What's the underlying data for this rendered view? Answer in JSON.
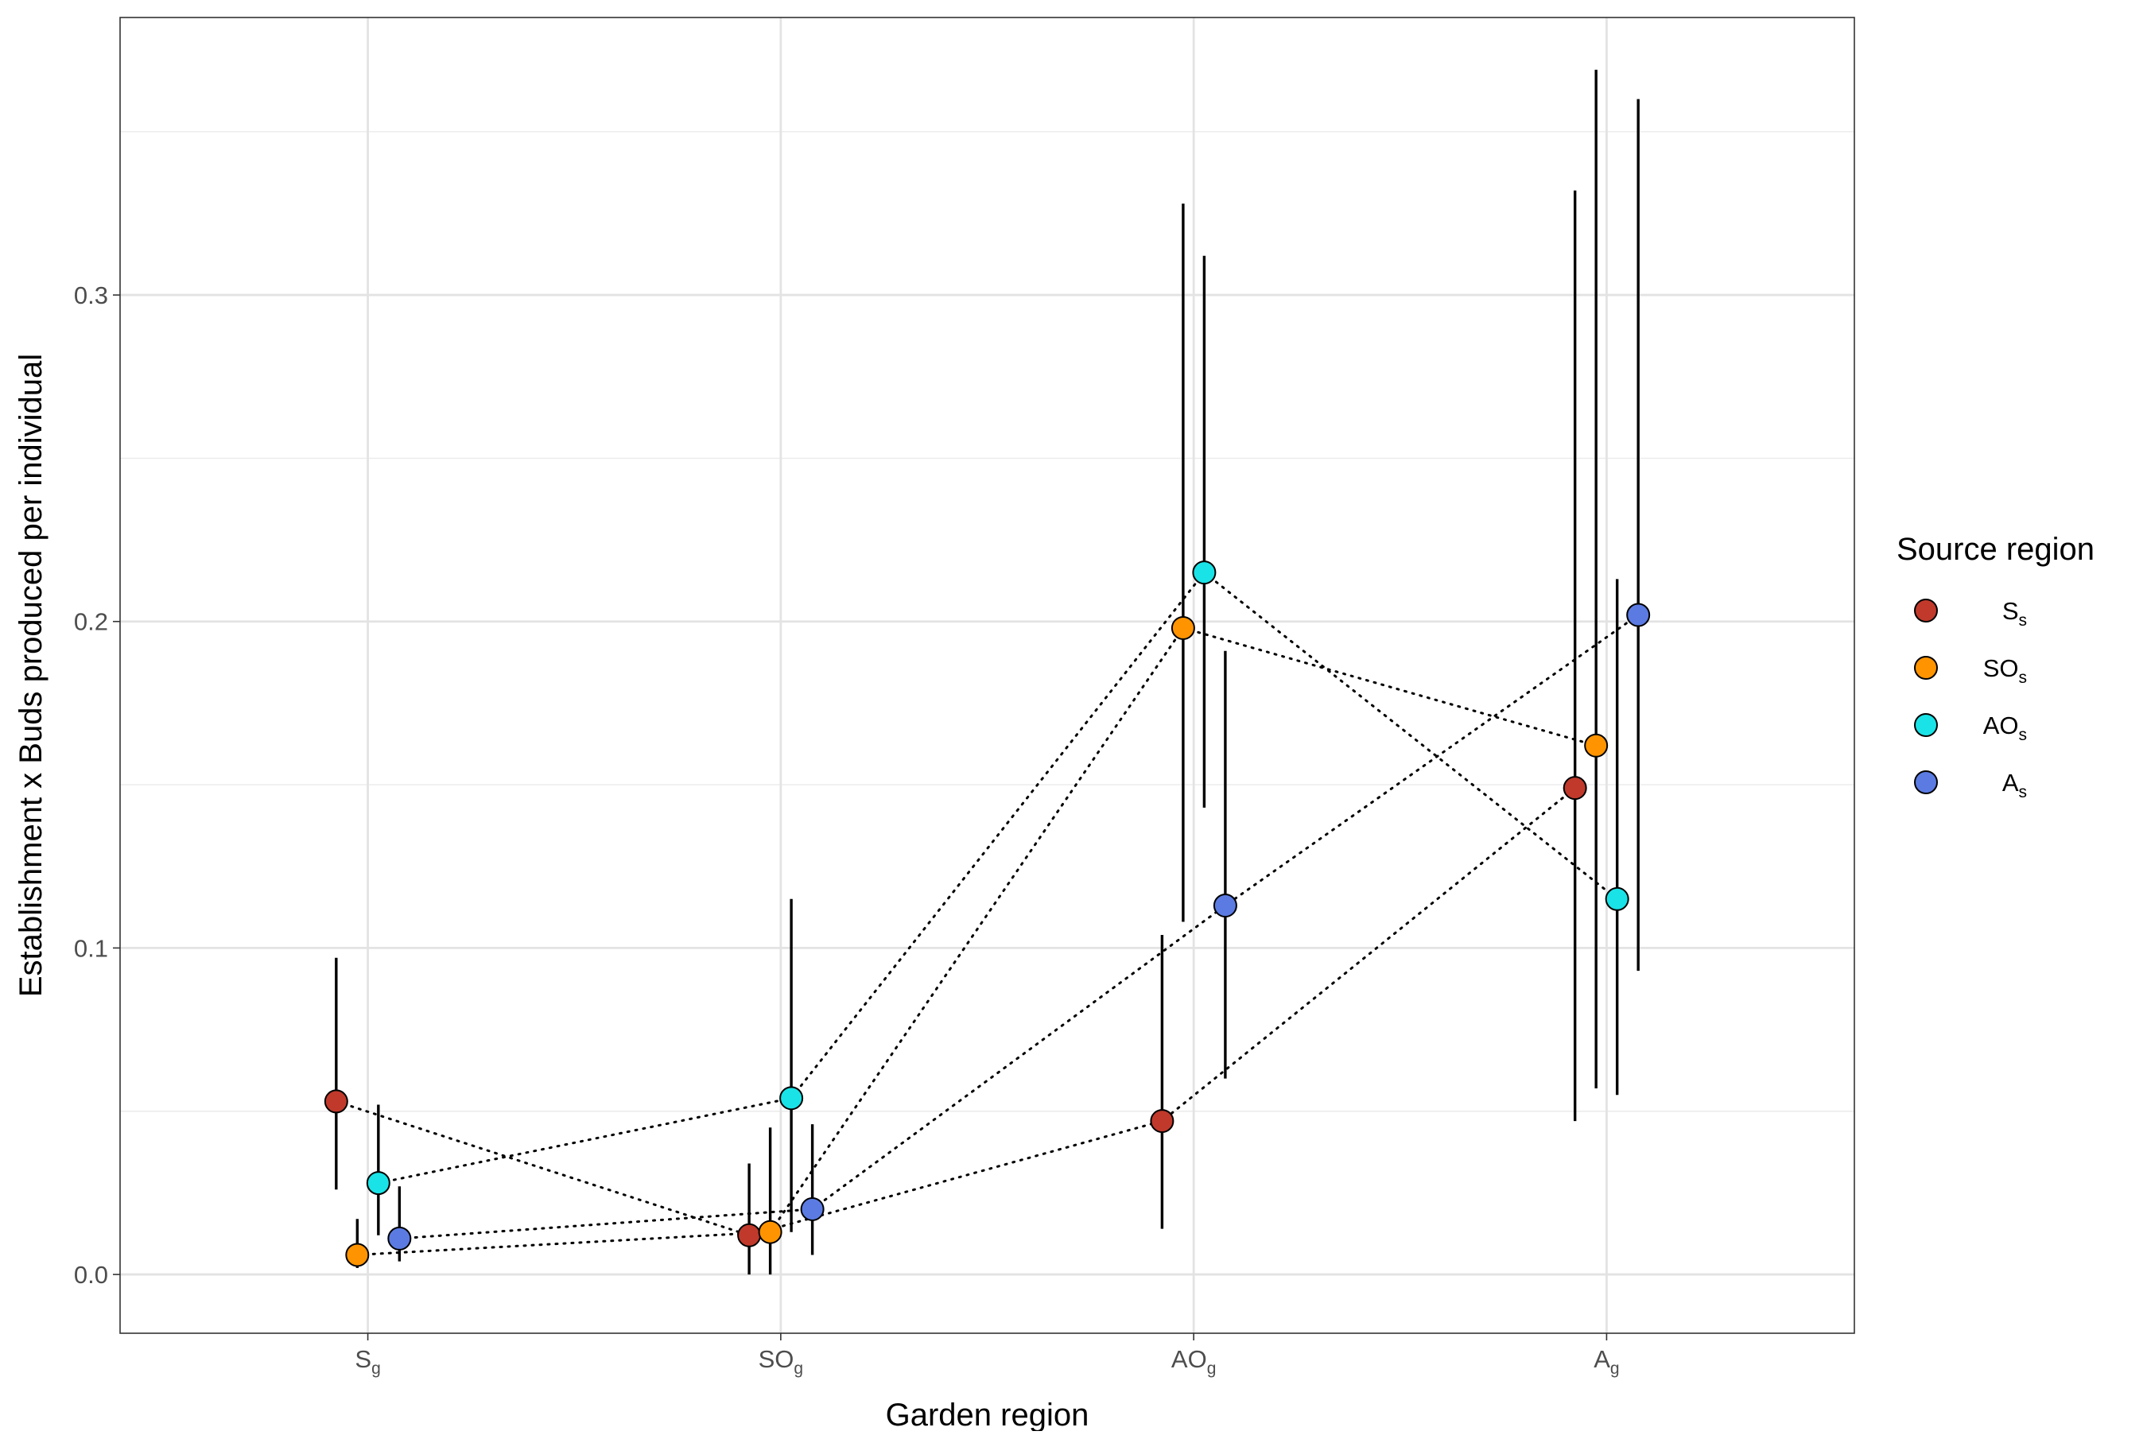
{
  "chart_data": {
    "type": "scatter",
    "xlabel": "Garden region",
    "ylabel": "Establishment x Buds produced per individual",
    "x_categories": [
      {
        "base": "S",
        "sub": "g"
      },
      {
        "base": "SO",
        "sub": "g"
      },
      {
        "base": "AO",
        "sub": "g"
      },
      {
        "base": "A",
        "sub": "g"
      }
    ],
    "ylim": [
      -0.018,
      0.385
    ],
    "yticks": [
      0.0,
      0.1,
      0.2,
      0.3
    ],
    "ytick_labels": [
      "0.0",
      "0.1",
      "0.2",
      "0.3"
    ],
    "grid": true,
    "legend": {
      "title": "Source region",
      "position": "right"
    },
    "series": [
      {
        "name": {
          "base": "S",
          "sub": "s"
        },
        "color": "#C0392B",
        "points": [
          {
            "x": "Sg",
            "y": 0.053,
            "lower": 0.026,
            "upper": 0.097
          },
          {
            "x": "SOg",
            "y": 0.012,
            "lower": 0.0,
            "upper": 0.034
          },
          {
            "x": "AOg",
            "y": 0.047,
            "lower": 0.014,
            "upper": 0.104
          },
          {
            "x": "Ag",
            "y": 0.149,
            "lower": 0.047,
            "upper": 0.332
          }
        ]
      },
      {
        "name": {
          "base": "SO",
          "sub": "s"
        },
        "color": "#FF9400",
        "points": [
          {
            "x": "Sg",
            "y": 0.006,
            "lower": 0.002,
            "upper": 0.017
          },
          {
            "x": "SOg",
            "y": 0.013,
            "lower": 0.0,
            "upper": 0.045
          },
          {
            "x": "AOg",
            "y": 0.198,
            "lower": 0.108,
            "upper": 0.328
          },
          {
            "x": "Ag",
            "y": 0.162,
            "lower": 0.057,
            "upper": 0.369
          }
        ]
      },
      {
        "name": {
          "base": "AO",
          "sub": "s"
        },
        "color": "#19E3E6",
        "points": [
          {
            "x": "Sg",
            "y": 0.028,
            "lower": 0.012,
            "upper": 0.052
          },
          {
            "x": "SOg",
            "y": 0.054,
            "lower": 0.013,
            "upper": 0.115
          },
          {
            "x": "AOg",
            "y": 0.215,
            "lower": 0.143,
            "upper": 0.312
          },
          {
            "x": "Ag",
            "y": 0.115,
            "lower": 0.055,
            "upper": 0.213
          }
        ]
      },
      {
        "name": {
          "base": "A",
          "sub": "s"
        },
        "color": "#5B7BE3",
        "points": [
          {
            "x": "Sg",
            "y": 0.011,
            "lower": 0.004,
            "upper": 0.027
          },
          {
            "x": "SOg",
            "y": 0.02,
            "lower": 0.006,
            "upper": 0.046
          },
          {
            "x": "AOg",
            "y": 0.113,
            "lower": 0.06,
            "upper": 0.191
          },
          {
            "x": "Ag",
            "y": 0.202,
            "lower": 0.093,
            "upper": 0.36
          }
        ]
      }
    ]
  }
}
